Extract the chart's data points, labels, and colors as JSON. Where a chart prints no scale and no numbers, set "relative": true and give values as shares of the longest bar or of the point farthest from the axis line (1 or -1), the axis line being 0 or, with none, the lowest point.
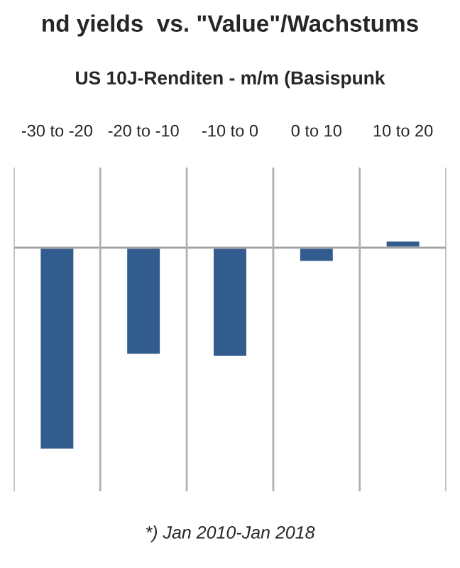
{
  "chart_data": {
    "type": "bar",
    "title": "nd yields  vs. \"Value\"/Wachstums",
    "subtitle": "US 10J-Renditen - m/m (Basispunk",
    "categories": [
      "-30 to -20",
      "-20 to -10",
      "-10 to 0",
      "0 to 10",
      "10 to 20"
    ],
    "values": [
      -1,
      -0.53,
      -0.54,
      -0.07,
      0.035
    ],
    "color": "#335c8e",
    "relative": true,
    "grid": "x",
    "annotations": [
      "*) Jan 2010-Jan 2018"
    ]
  }
}
